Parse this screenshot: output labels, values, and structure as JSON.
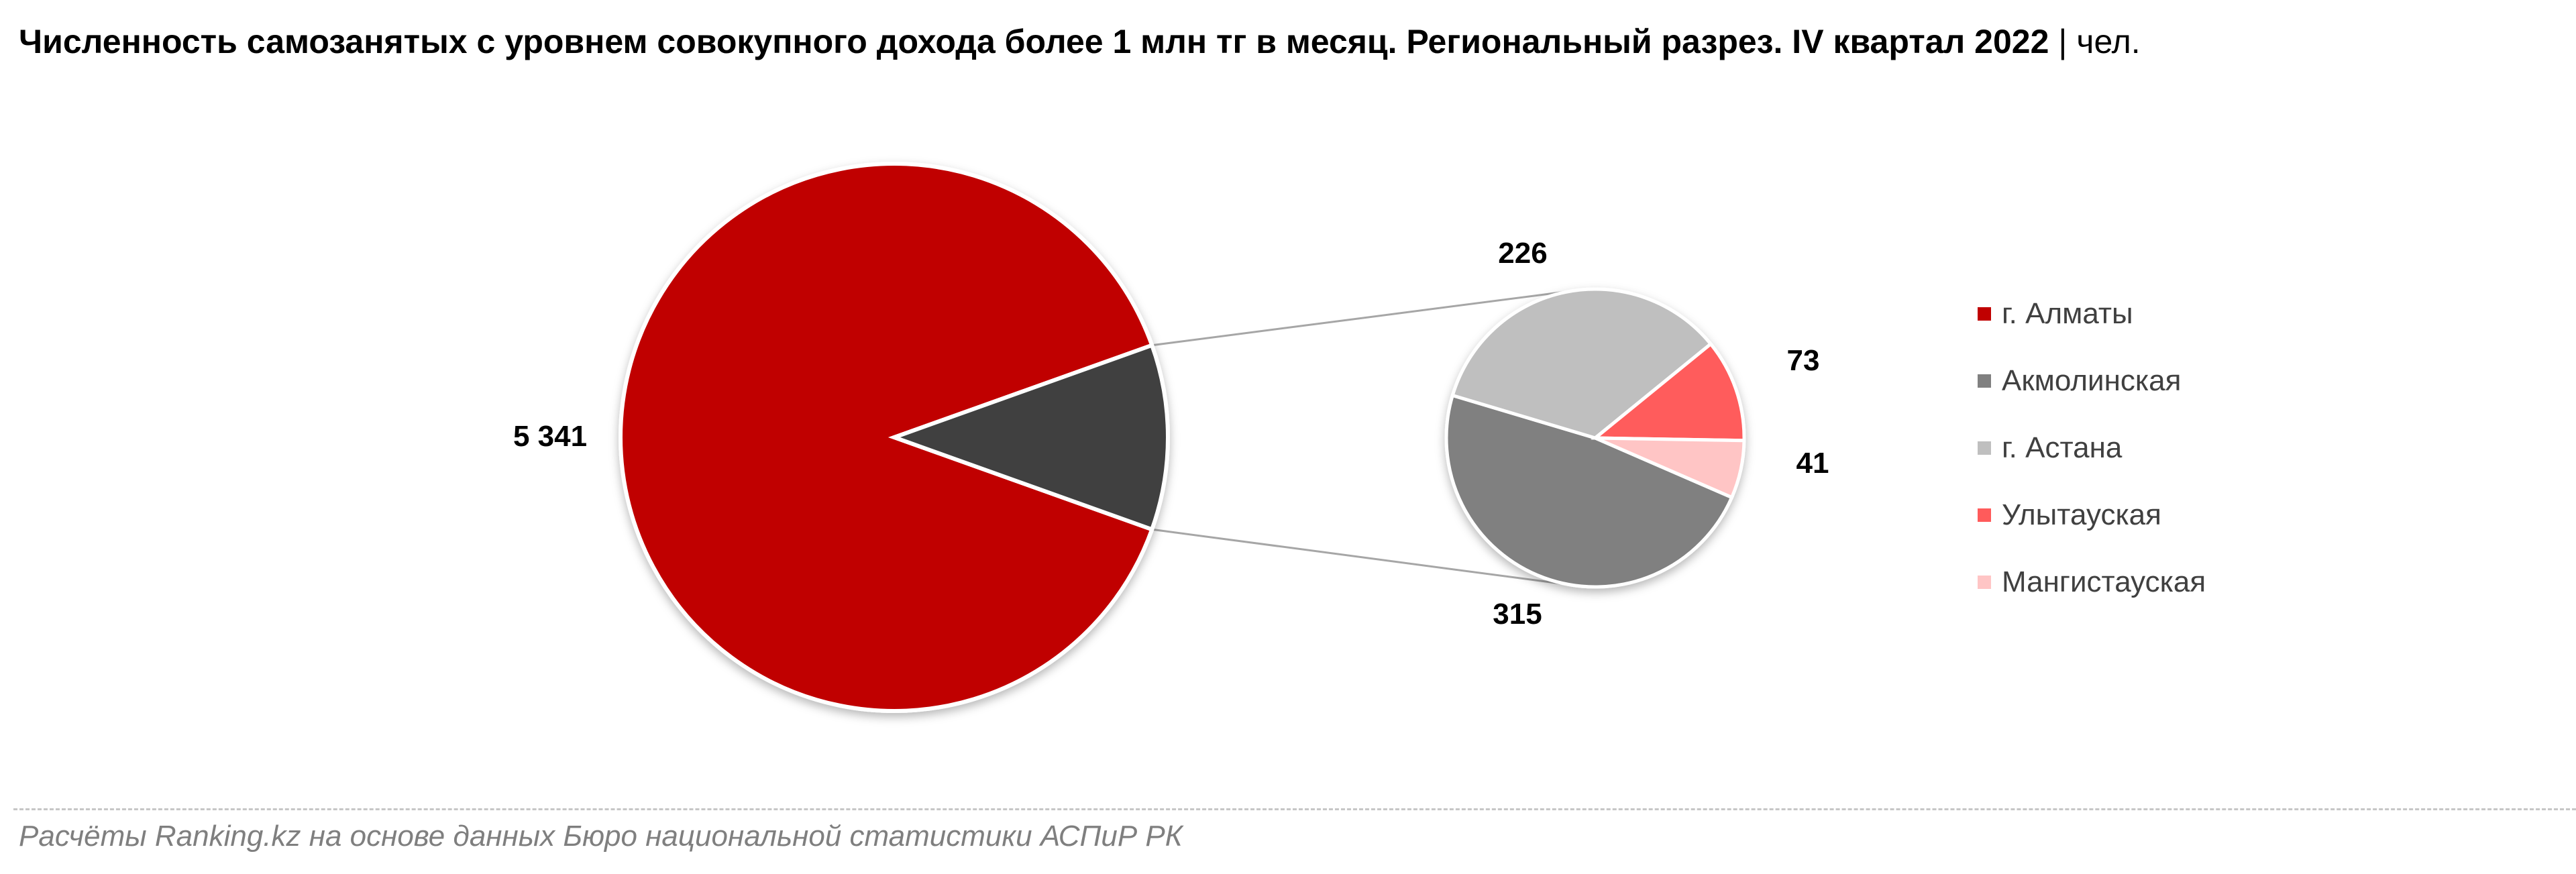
{
  "title": {
    "main": "Численность самозанятых с уровнем совокупного дохода более 1 млн тг в месяц. Региональный разрез. IV квартал 2022",
    "separator": "|",
    "unit": "чел."
  },
  "chart_data": {
    "type": "pie",
    "subtype": "pie-of-pie",
    "unit": "чел.",
    "main_pie": [
      {
        "name": "г. Алматы",
        "value": 5341,
        "label": "5 341",
        "color": "#C00000"
      },
      {
        "name": "",
        "value": 655,
        "label": "",
        "color": "#404040"
      }
    ],
    "secondary_pie": [
      {
        "name": "Акмолинская",
        "value": 315,
        "label": "315",
        "color": "#808080"
      },
      {
        "name": "г. Астана",
        "value": 226,
        "label": "226",
        "color": "#BFBFBF"
      },
      {
        "name": "Улытауская",
        "value": 73,
        "label": "73",
        "color": "#FF5B5B"
      },
      {
        "name": "Мангистауская",
        "value": 41,
        "label": "41",
        "color": "#FFC5C5"
      }
    ],
    "legend": {
      "position": "right",
      "items": [
        {
          "label": "г. Алматы",
          "color": "#C00000"
        },
        {
          "label": "Акмолинская",
          "color": "#808080"
        },
        {
          "label": "г. Астана",
          "color": "#BFBFBF"
        },
        {
          "label": "Улытауская",
          "color": "#FF5B5B"
        },
        {
          "label": "Мангистауская",
          "color": "#FFC5C5"
        }
      ]
    }
  },
  "footer": {
    "source": "Расчёты Ranking.kz на основе данных Бюро национальной статистики АСПиР РК"
  }
}
